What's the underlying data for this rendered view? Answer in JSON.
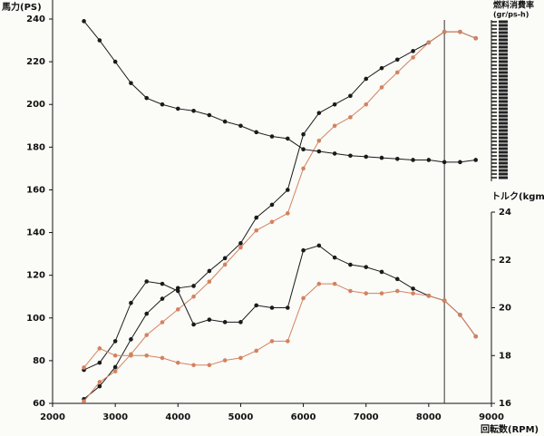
{
  "chart_data": {
    "type": "line",
    "y_label": "馬力(PS)",
    "y2_label": "トルク(kgm)",
    "y3_label": "燃料消費率",
    "y3_unit": "(gr/ps-h)",
    "x_label": "回転数(RPM)",
    "x": [
      2500,
      2750,
      3000,
      3250,
      3500,
      3750,
      4000,
      4250,
      4500,
      4750,
      5000,
      5250,
      5500,
      5750,
      6000,
      6250,
      6500,
      6750,
      7000,
      7250,
      7500,
      7750,
      8000,
      8250,
      8500,
      8750
    ],
    "series": [
      {
        "color": "#1a1a1a",
        "values": [
          62,
          68,
          77,
          90,
          102,
          109,
          114,
          115,
          122,
          128,
          135,
          147,
          153,
          160,
          186,
          196,
          200,
          204,
          212,
          217,
          221,
          225,
          229,
          234,
          234,
          231
        ]
      },
      {
        "color": "#d4825f",
        "values": [
          61,
          70,
          75,
          83,
          92,
          98,
          104,
          110,
          117,
          125,
          133,
          141,
          145,
          149,
          170,
          183,
          190,
          194,
          200,
          208,
          215,
          222,
          229,
          234,
          234,
          231
        ]
      },
      {
        "color": "#1a1a1a",
        "values": [
          239,
          230,
          220,
          210,
          203,
          200,
          198,
          197,
          195,
          192,
          190,
          187,
          185,
          184,
          179,
          178,
          177,
          176,
          175.5,
          175,
          174.5,
          174,
          174,
          173,
          173,
          174
        ]
      },
      {
        "color": "#1a1a1a",
        "axis": "y2",
        "values": [
          17.4,
          17.7,
          18.6,
          20.2,
          21.1,
          21.0,
          20.7,
          19.3,
          19.5,
          19.4,
          19.4,
          20.1,
          20.0,
          20.0,
          22.4,
          22.6,
          22.1,
          21.8,
          21.7,
          21.5,
          21.2,
          20.8,
          20.5,
          20.3,
          19.7,
          18.8
        ]
      },
      {
        "color": "#d4825f",
        "axis": "y2",
        "values": [
          17.5,
          18.3,
          18.0,
          18.0,
          18.0,
          17.9,
          17.7,
          17.6,
          17.6,
          17.8,
          17.9,
          18.2,
          18.6,
          18.6,
          20.4,
          21.0,
          21.0,
          20.7,
          20.6,
          20.6,
          20.7,
          20.6,
          20.5,
          20.3,
          19.7,
          18.8
        ]
      }
    ],
    "xlim": [
      2000,
      9000
    ],
    "xticks": [
      2000,
      3000,
      4000,
      5000,
      6000,
      7000,
      8000,
      9000
    ],
    "ylim": [
      60,
      240
    ],
    "yticks": [
      60,
      80,
      100,
      120,
      140,
      160,
      180,
      200,
      220,
      240
    ],
    "y2lim": [
      16,
      24
    ],
    "y2ticks": [
      16,
      18,
      20,
      22,
      24
    ],
    "vline_x": 8250
  }
}
